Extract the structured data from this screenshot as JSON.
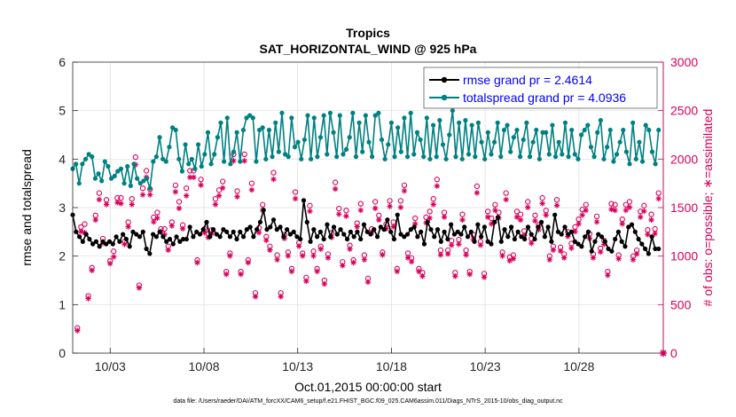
{
  "chart_data": {
    "type": "line",
    "title": "Tropics",
    "subtitle": "SAT_HORIZONTAL_WIND @ 925 hPa",
    "xlabel": "Oct.01,2015 00:00:00 start",
    "ylabel_left": "rmse and totalspread",
    "ylabel_right": "# of obs: o=possible; ∗=assimilated",
    "x_tick_labels": [
      "10/03",
      "10/08",
      "10/13",
      "10/18",
      "10/23",
      "10/28"
    ],
    "x_tick_days": [
      3,
      8,
      13,
      18,
      23,
      28
    ],
    "xlim_days": [
      1,
      32.5
    ],
    "ylim_left": [
      0,
      6
    ],
    "y_ticks_left": [
      "0",
      "1",
      "2",
      "3",
      "4",
      "5",
      "6"
    ],
    "ylim_right": [
      0,
      3000
    ],
    "y_ticks_right": [
      "0",
      "500",
      "1000",
      "1500",
      "2000",
      "2500",
      "3000"
    ],
    "grid": true,
    "legend_position": "top-right",
    "colors": {
      "rmse": "#000000",
      "spread": "#008080",
      "obs": "#d9005b"
    },
    "series": [
      {
        "name": "rmse grand pr = 2.4614",
        "color": "#000000",
        "values": [
          2.85,
          2.5,
          2.4,
          2.3,
          2.45,
          2.35,
          2.25,
          2.3,
          2.2,
          2.3,
          2.25,
          2.3,
          2.25,
          2.4,
          2.3,
          2.45,
          2.35,
          2.2,
          2.5,
          2.45,
          2.4,
          2.5,
          2.15,
          2.05,
          2.45,
          2.4,
          2.5,
          2.4,
          2.3,
          2.35,
          2.25,
          2.4,
          2.3,
          2.35,
          2.35,
          2.6,
          2.4,
          2.5,
          2.45,
          2.55,
          2.7,
          2.4,
          2.55,
          2.45,
          2.4,
          2.55,
          2.5,
          2.4,
          2.5,
          2.35,
          2.5,
          2.4,
          2.55,
          2.6,
          2.4,
          2.55,
          2.7,
          2.95,
          2.55,
          2.6,
          2.75,
          2.55,
          2.6,
          2.4,
          2.55,
          2.45,
          2.5,
          2.4,
          2.35,
          3.15,
          2.7,
          2.3,
          2.55,
          2.4,
          2.5,
          2.35,
          2.65,
          2.4,
          2.6,
          2.45,
          2.55,
          2.45,
          2.35,
          2.5,
          2.4,
          2.5,
          2.35,
          2.65,
          2.5,
          2.45,
          2.55,
          2.4,
          2.6,
          2.55,
          2.75,
          2.5,
          2.35,
          2.85,
          2.45,
          2.4,
          2.45,
          2.55,
          2.6,
          2.4,
          2.5,
          2.25,
          2.7,
          2.55,
          2.4,
          2.55,
          2.3,
          2.5,
          2.35,
          2.65,
          2.45,
          2.5,
          2.45,
          2.6,
          2.4,
          2.5,
          2.3,
          2.65,
          2.4,
          2.6,
          2.3,
          2.25,
          2.7,
          2.8,
          2.3,
          2.55,
          2.4,
          2.6,
          2.35,
          2.5,
          2.4,
          2.35,
          2.6,
          2.45,
          2.35,
          2.6,
          2.7,
          2.4,
          2.6,
          2.3,
          2.85,
          2.5,
          2.45,
          2.6,
          2.45,
          2.5,
          2.3,
          2.25,
          2.2,
          2.4,
          2.5,
          2.1,
          2.3,
          2.45,
          2.4,
          2.3,
          2.15,
          2.1,
          2.35,
          2.5,
          2.3,
          2.2,
          2.6,
          2.65,
          2.5,
          2.35,
          2.25,
          2.15,
          2.05,
          2.4,
          2.15,
          2.15
        ]
      },
      {
        "name": "totalspread grand pr = 4.0936",
        "color": "#008080",
        "values": [
          3.8,
          3.9,
          3.5,
          3.9,
          4.0,
          4.1,
          4.05,
          3.6,
          3.7,
          3.55,
          3.95,
          3.85,
          3.6,
          3.65,
          3.75,
          3.8,
          3.5,
          3.85,
          3.45,
          3.9,
          3.6,
          3.5,
          3.55,
          3.6,
          3.4,
          3.95,
          4.05,
          4.45,
          4.0,
          3.95,
          4.25,
          4.65,
          4.6,
          4.0,
          3.75,
          4.3,
          3.9,
          4.0,
          3.8,
          4.3,
          3.85,
          4.1,
          4.55,
          3.9,
          4.1,
          4.45,
          4.75,
          3.95,
          4.85,
          3.9,
          4.15,
          4.55,
          3.95,
          4.6,
          4.85,
          4.9,
          4.85,
          3.95,
          4.6,
          4.65,
          4.0,
          4.6,
          4.05,
          4.75,
          4.15,
          4.95,
          4.1,
          4.05,
          4.85,
          4.25,
          4.35,
          4.0,
          4.4,
          4.9,
          4.0,
          4.85,
          4.05,
          4.45,
          4.9,
          4.1,
          4.95,
          4.55,
          4.05,
          4.9,
          4.1,
          4.2,
          4.45,
          4.95,
          4.05,
          4.75,
          4.15,
          4.9,
          4.35,
          4.05,
          4.9,
          4.95,
          4.4,
          4.0,
          4.3,
          4.75,
          4.05,
          4.65,
          4.15,
          4.85,
          4.05,
          4.95,
          4.1,
          4.55,
          4.4,
          4.05,
          4.85,
          4.0,
          4.7,
          4.05,
          4.8,
          4.3,
          4.0,
          4.5,
          5.0,
          4.05,
          4.75,
          4.0,
          4.8,
          4.1,
          4.7,
          4.05,
          4.75,
          4.35,
          4.0,
          4.55,
          4.1,
          4.35,
          4.75,
          4.05,
          4.6,
          4.7,
          4.15,
          4.45,
          4.6,
          4.05,
          4.4,
          4.75,
          4.05,
          4.35,
          4.6,
          4.0,
          4.55,
          4.55,
          4.1,
          4.7,
          4.05,
          4.35,
          4.1,
          4.75,
          4.05,
          4.6,
          4.1,
          4.0,
          4.5,
          4.6,
          4.7,
          4.25,
          4.05,
          4.55,
          4.8,
          4.0,
          4.25,
          4.6,
          3.95,
          4.1,
          4.35,
          4.6,
          4.15,
          3.9,
          4.75,
          4.0,
          4.35,
          3.95,
          4.7,
          4.6,
          4.15,
          3.9,
          4.6
        ]
      }
    ],
    "obs_possible_right": [
      260,
      1300,
      1330,
      590,
      880,
      1420,
      1650,
      1180,
      1580,
      950,
      1050,
      1600,
      1600,
      1150,
      1350,
      1590,
      2020,
      700,
      1700,
      1880,
      1690,
      1400,
      1450,
      1280,
      1280,
      1100,
      1350,
      1730,
      1560,
      1320,
      1700,
      1880,
      1880,
      960,
      1790,
      1280,
      1230,
      1270,
      1590,
      1680,
      1770,
      840,
      1030,
      2050,
      1670,
      840,
      2050,
      960,
      1750,
      620,
      1290,
      1530,
      1200,
      1100,
      1860,
      1010,
      620,
      1220,
      1040,
      870,
      1660,
      1140,
      1030,
      780,
      1520,
      1050,
      870,
      1100,
      750,
      1020,
      1240,
      1760,
      1490,
      940,
      1470,
      1110,
      960,
      1340,
      1540,
      1010,
      770,
      1280,
      1560,
      1420,
      1040,
      1330,
      1570,
      1350,
      870,
      1570,
      1730,
      1030,
      980,
      1390,
      870,
      830,
      1400,
      1460,
      1590,
      1790,
      1060,
      1450,
      1060,
      1160,
      830,
      1170,
      1430,
      1060,
      840,
      1220,
      1720,
      1150,
      820,
      1460,
      1390,
      1530,
      1450,
      1040,
      1650,
      990,
      1010,
      1460,
      1430,
      1260,
      1560,
      1180,
      1420,
      1320,
      1600,
      1470,
      1000,
      1100,
      1580,
      1090,
      1020,
      1250,
      1130,
      1300,
      1380,
      1480,
      1530,
      1230,
      1020,
      1410,
      1080,
      1160,
      840,
      1540,
      1530,
      1010,
      1380,
      1530,
      1560,
      1000,
      1060,
      1460,
      1520,
      1270,
      1430,
      1280,
      1650
    ],
    "obs_assimilated_right": [
      260,
      1280,
      1270,
      590,
      880,
      1400,
      1610,
      1160,
      1560,
      950,
      1020,
      1580,
      1570,
      1150,
      1330,
      1560,
      1970,
      700,
      1660,
      1840,
      1660,
      1380,
      1420,
      1280,
      1250,
      1090,
      1340,
      1690,
      1520,
      1310,
      1650,
      1840,
      1840,
      960,
      1760,
      1270,
      1220,
      1260,
      1560,
      1650,
      1730,
      840,
      1030,
      2010,
      1640,
      840,
      2010,
      960,
      1710,
      610,
      1270,
      1500,
      1190,
      1090,
      1820,
      990,
      610,
      1210,
      1030,
      870,
      1620,
      1130,
      1030,
      770,
      1490,
      1030,
      870,
      1100,
      740,
      1010,
      1220,
      1720,
      1460,
      930,
      1440,
      1100,
      960,
      1330,
      1500,
      990,
      760,
      1270,
      1520,
      1400,
      1040,
      1310,
      1540,
      1330,
      870,
      1530,
      1700,
      1010,
      970,
      1360,
      870,
      820,
      1370,
      1420,
      1560,
      1750,
      1040,
      1430,
      1050,
      1140,
      820,
      1150,
      1400,
      1040,
      840,
      1200,
      1680,
      1140,
      810,
      1430,
      1360,
      1500,
      1420,
      1030,
      1610,
      980,
      1000,
      1430,
      1400,
      1240,
      1530,
      1160,
      1390,
      1300,
      1570,
      1450,
      990,
      1090,
      1550,
      1080,
      1010,
      1230,
      1110,
      1280,
      1360,
      1450,
      1500,
      1210,
      1010,
      1380,
      1070,
      1150,
      830,
      1510,
      1500,
      1000,
      1360,
      1500,
      1530,
      990,
      1050,
      1430,
      1490,
      1250,
      1400,
      1260,
      1620
    ]
  },
  "footer": "data file: /Users/raeder/DAI/ATM_forcXX/CAM6_setup/f.e21.FHIST_BGC.f09_025.CAM6assim.011/Diags_NTrS_2015-10/obs_diag_output.nc"
}
